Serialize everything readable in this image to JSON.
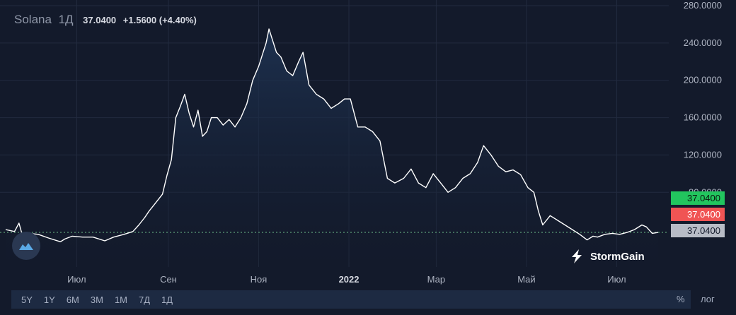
{
  "legend": {
    "symbol": "Solana",
    "timeframe": "1Д",
    "last": "37.0400",
    "change": "+1.5600 (+4.40%)"
  },
  "brand": {
    "name": "StormGain",
    "icon": "stormgain-bolt-icon",
    "chart_badge_icon": "cloud-wave-icon"
  },
  "toolbar": {
    "ranges": [
      "5Y",
      "1Y",
      "6M",
      "3M",
      "1M",
      "7Д",
      "1Д"
    ],
    "percent_label": "%",
    "log_label": "лог"
  },
  "colors": {
    "background": "#131a2b",
    "line": "#ffffff",
    "grid": "#222b3f",
    "tag_green": "#22c55e",
    "tag_red": "#f05454",
    "tag_grey": "#b8bcc6"
  },
  "price_tags": [
    {
      "value": "37.0400",
      "style": "green"
    },
    {
      "value": "37.0400",
      "style": "red"
    },
    {
      "value": "37.0400",
      "style": "grey"
    }
  ],
  "chart_data": {
    "type": "area",
    "title": "",
    "xlabel": "",
    "ylabel": "",
    "ylim": [
      0,
      280
    ],
    "grid": true,
    "y_ticks": [
      "80.0000",
      "120.0000",
      "160.0000",
      "200.0000",
      "240.0000",
      "280.0000"
    ],
    "x_ticks": [
      {
        "label": "Июл",
        "at": "2021-07-01",
        "bold": false
      },
      {
        "label": "Сен",
        "at": "2021-09-01",
        "bold": false
      },
      {
        "label": "Ноя",
        "at": "2021-11-01",
        "bold": false
      },
      {
        "label": "2022",
        "at": "2022-01-01",
        "bold": true
      },
      {
        "label": "Мар",
        "at": "2022-03-01",
        "bold": false
      },
      {
        "label": "Май",
        "at": "2022-05-01",
        "bold": false
      },
      {
        "label": "Июл",
        "at": "2022-07-01",
        "bold": false
      }
    ],
    "reference_line": 37.04,
    "series": [
      {
        "x": [
          "2021-05-14",
          "2021-05-20",
          "2021-05-23",
          "2021-05-26",
          "2021-05-30",
          "2021-06-05",
          "2021-06-12",
          "2021-06-20",
          "2021-06-23",
          "2021-06-28",
          "2021-07-05",
          "2021-07-12",
          "2021-07-20",
          "2021-07-26",
          "2021-08-02",
          "2021-08-08",
          "2021-08-12",
          "2021-08-16",
          "2021-08-19",
          "2021-08-22",
          "2021-08-25",
          "2021-08-28",
          "2021-08-31",
          "2021-09-03",
          "2021-09-06",
          "2021-09-09",
          "2021-09-12",
          "2021-09-15",
          "2021-09-18",
          "2021-09-21",
          "2021-09-24",
          "2021-09-27",
          "2021-09-30",
          "2021-10-04",
          "2021-10-08",
          "2021-10-12",
          "2021-10-16",
          "2021-10-20",
          "2021-10-24",
          "2021-10-28",
          "2021-11-01",
          "2021-11-04",
          "2021-11-06",
          "2021-11-08",
          "2021-11-10",
          "2021-11-13",
          "2021-11-16",
          "2021-11-20",
          "2021-11-24",
          "2021-11-28",
          "2021-12-01",
          "2021-12-05",
          "2021-12-10",
          "2021-12-15",
          "2021-12-20",
          "2021-12-25",
          "2021-12-29",
          "2022-01-02",
          "2022-01-07",
          "2022-01-12",
          "2022-01-17",
          "2022-01-22",
          "2022-01-27",
          "2022-02-01",
          "2022-02-07",
          "2022-02-12",
          "2022-02-17",
          "2022-02-22",
          "2022-02-27",
          "2022-03-04",
          "2022-03-09",
          "2022-03-14",
          "2022-03-19",
          "2022-03-24",
          "2022-03-29",
          "2022-04-02",
          "2022-04-07",
          "2022-04-12",
          "2022-04-17",
          "2022-04-22",
          "2022-04-27",
          "2022-05-02",
          "2022-05-06",
          "2022-05-09",
          "2022-05-12",
          "2022-05-17",
          "2022-05-22",
          "2022-05-27",
          "2022-06-01",
          "2022-06-06",
          "2022-06-11",
          "2022-06-15",
          "2022-06-18",
          "2022-06-23",
          "2022-06-28",
          "2022-07-03",
          "2022-07-08",
          "2022-07-13",
          "2022-07-18",
          "2022-07-21",
          "2022-07-25",
          "2022-07-29"
        ],
        "y": [
          40,
          38,
          47,
          30,
          36,
          35,
          31,
          27,
          30,
          33,
          32,
          32,
          28,
          32,
          35,
          38,
          45,
          53,
          60,
          66,
          72,
          78,
          98,
          115,
          160,
          172,
          185,
          165,
          150,
          168,
          140,
          145,
          160,
          160,
          152,
          158,
          150,
          160,
          175,
          200,
          215,
          230,
          240,
          255,
          245,
          230,
          225,
          210,
          205,
          220,
          230,
          195,
          185,
          180,
          170,
          175,
          180,
          180,
          150,
          150,
          145,
          135,
          95,
          90,
          95,
          105,
          90,
          85,
          100,
          90,
          80,
          85,
          95,
          100,
          112,
          130,
          120,
          108,
          102,
          104,
          99,
          85,
          80,
          60,
          45,
          55,
          50,
          45,
          40,
          35,
          29,
          33,
          32,
          35,
          36,
          35,
          37,
          40,
          45,
          43,
          36,
          37.04
        ]
      }
    ]
  }
}
